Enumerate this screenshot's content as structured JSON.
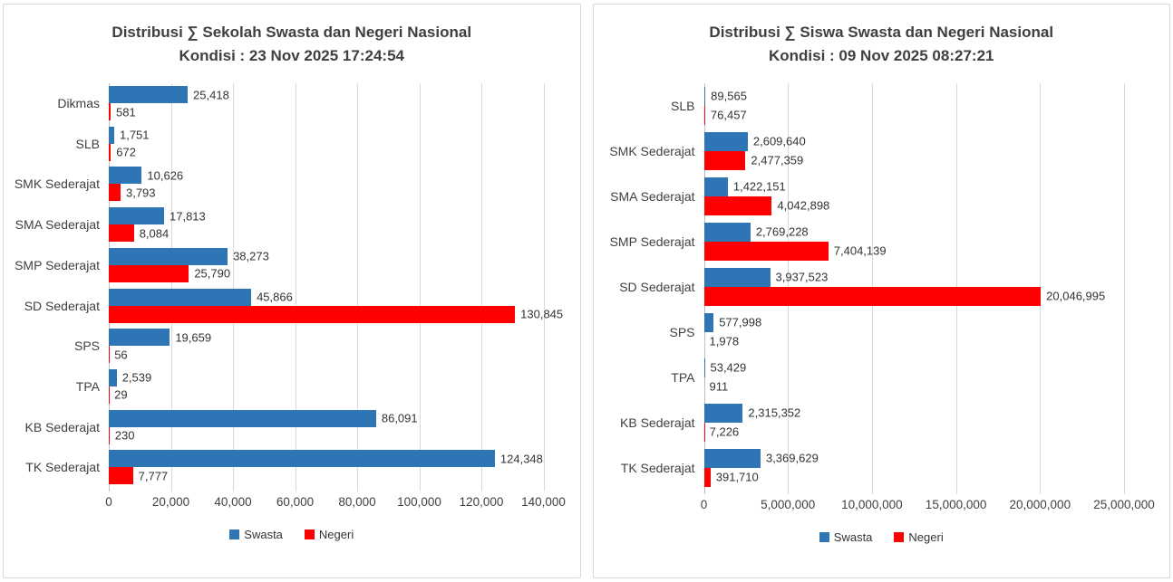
{
  "colors": {
    "swasta": "#2E75B6",
    "negeri": "#FF0000",
    "gridline": "#d9d9d9",
    "axis_line": "#bfbfbf"
  },
  "chart_data": [
    {
      "type": "bar",
      "orientation": "horizontal",
      "title": "Distribusi ∑ Sekolah Swasta dan Negeri Nasional",
      "subtitle": "Kondisi : 23 Nov 2025 17:24:54",
      "categories": [
        "Dikmas",
        "SLB",
        "SMK Sederajat",
        "SMA Sederajat",
        "SMP Sederajat",
        "SD Sederajat",
        "SPS",
        "TPA",
        "KB Sederajat",
        "TK Sederajat"
      ],
      "series": [
        {
          "name": "Swasta",
          "color": "#2E75B6",
          "values": [
            25418,
            1751,
            10626,
            17813,
            38273,
            45866,
            19659,
            2539,
            86091,
            124348
          ]
        },
        {
          "name": "Negeri",
          "color": "#FF0000",
          "values": [
            581,
            672,
            3793,
            8084,
            25790,
            130845,
            56,
            29,
            230,
            7777
          ]
        }
      ],
      "xlim": [
        0,
        140000
      ],
      "x_ticks": [
        "0",
        "20,000",
        "40,000",
        "60,000",
        "80,000",
        "100,000",
        "120,000",
        "140,000"
      ],
      "grid": true,
      "legend_position": "bottom",
      "legend": [
        "Swasta",
        "Negeri"
      ]
    },
    {
      "type": "bar",
      "orientation": "horizontal",
      "title": "Distribusi ∑ Siswa Swasta dan Negeri Nasional",
      "subtitle": "Kondisi : 09 Nov 2025 08:27:21",
      "categories": [
        "SLB",
        "SMK Sederajat",
        "SMA Sederajat",
        "SMP Sederajat",
        "SD Sederajat",
        "SPS",
        "TPA",
        "KB Sederajat",
        "TK Sederajat"
      ],
      "series": [
        {
          "name": "Swasta",
          "color": "#2E75B6",
          "values": [
            89565,
            2609640,
            1422151,
            2769228,
            3937523,
            577998,
            53429,
            2315352,
            3369629
          ]
        },
        {
          "name": "Negeri",
          "color": "#FF0000",
          "values": [
            76457,
            2477359,
            4042898,
            7404139,
            20046995,
            1978,
            911,
            7226,
            391710
          ]
        }
      ],
      "xlim": [
        0,
        25000000
      ],
      "x_ticks": [
        "0",
        "5,000,000",
        "10,000,000",
        "15,000,000",
        "20,000,000",
        "25,000,000"
      ],
      "grid": true,
      "legend_position": "bottom",
      "legend": [
        "Swasta",
        "Negeri"
      ]
    }
  ]
}
